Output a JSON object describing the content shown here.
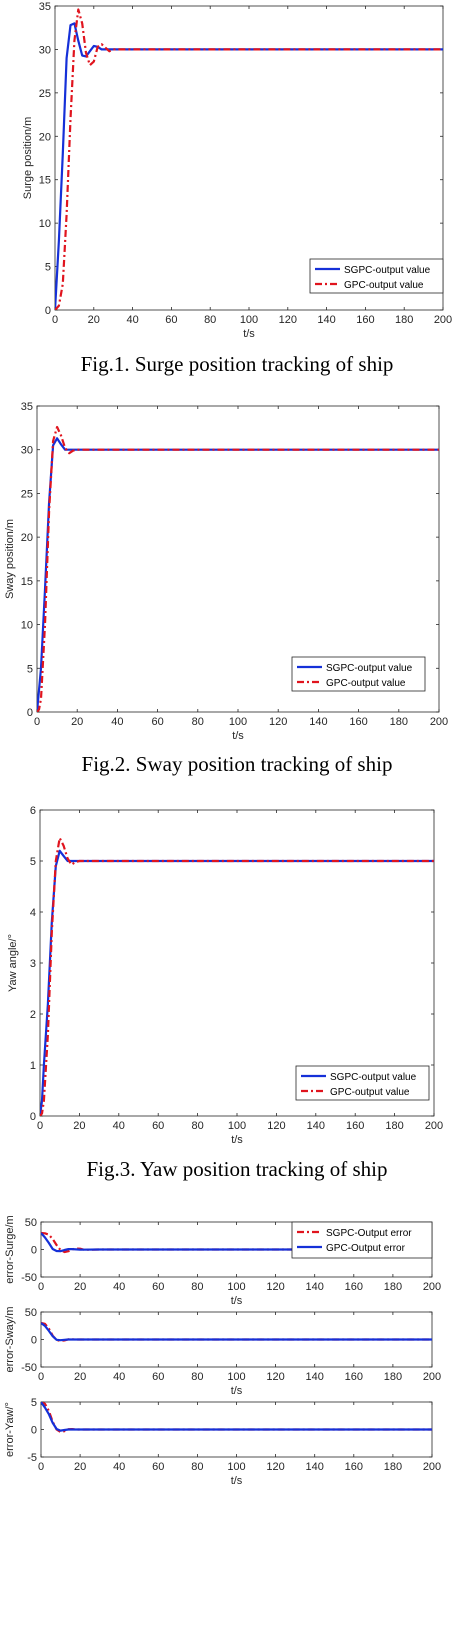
{
  "chart_data": [
    {
      "type": "line",
      "xlabel": "t/s",
      "ylabel": "Surge position/m",
      "xlim": [
        0,
        200
      ],
      "ylim": [
        0,
        35
      ],
      "xticks": [
        0,
        20,
        40,
        60,
        80,
        100,
        120,
        140,
        160,
        180,
        200
      ],
      "yticks": [
        0,
        5,
        10,
        15,
        20,
        25,
        30,
        35
      ],
      "grid": false,
      "legend_position": "bottom-right",
      "series": [
        {
          "name": "SGPC-output value",
          "color": "#1530d8",
          "style": "solid",
          "x": [
            0,
            2,
            4,
            6,
            8,
            10,
            12,
            14,
            16,
            18,
            20,
            22,
            24,
            26,
            30,
            40,
            200
          ],
          "y": [
            0,
            8,
            18,
            29,
            32.8,
            33,
            31,
            29.3,
            29.2,
            29.8,
            30.4,
            30.3,
            30,
            30,
            30,
            30,
            30
          ]
        },
        {
          "name": "GPC-output value",
          "color": "#e0141e",
          "style": "dashdot",
          "x": [
            0,
            2,
            4,
            6,
            8,
            10,
            12,
            14,
            16,
            18,
            20,
            22,
            24,
            26,
            28,
            30,
            40,
            200
          ],
          "y": [
            0,
            0.5,
            3,
            11,
            22,
            31,
            34.6,
            33,
            29.6,
            28.2,
            28.6,
            30.3,
            30.6,
            30.2,
            29.8,
            30,
            30,
            30
          ]
        }
      ],
      "caption": "Fig.1. Surge position tracking of ship"
    },
    {
      "type": "line",
      "xlabel": "t/s",
      "ylabel": "Sway position/m",
      "xlim": [
        0,
        200
      ],
      "ylim": [
        0,
        35
      ],
      "xticks": [
        0,
        20,
        40,
        60,
        80,
        100,
        120,
        140,
        160,
        180,
        200
      ],
      "yticks": [
        0,
        5,
        10,
        15,
        20,
        25,
        30,
        35
      ],
      "grid": false,
      "legend_position": "bottom-right",
      "series": [
        {
          "name": "SGPC-output value",
          "color": "#1530d8",
          "style": "solid",
          "x": [
            0,
            2,
            4,
            6,
            8,
            10,
            12,
            14,
            16,
            20,
            200
          ],
          "y": [
            0,
            5,
            14,
            24,
            30.5,
            31.3,
            30.6,
            30,
            30,
            30,
            30
          ]
        },
        {
          "name": "GPC-output value",
          "color": "#e0141e",
          "style": "dashdot",
          "x": [
            0,
            1,
            2,
            4,
            6,
            8,
            10,
            12,
            14,
            16,
            18,
            20,
            200
          ],
          "y": [
            0,
            0.3,
            1.5,
            10,
            23,
            31,
            32.6,
            31.6,
            30.2,
            29.6,
            29.9,
            30,
            30
          ]
        }
      ],
      "caption": "Fig.2. Sway position tracking of ship"
    },
    {
      "type": "line",
      "xlabel": "t/s",
      "ylabel": "Yaw angle/°",
      "xlim": [
        0,
        200
      ],
      "ylim": [
        0,
        6
      ],
      "xticks": [
        0,
        20,
        40,
        60,
        80,
        100,
        120,
        140,
        160,
        180,
        200
      ],
      "yticks": [
        0,
        1,
        2,
        3,
        4,
        5,
        6
      ],
      "grid": false,
      "legend_position": "bottom-right",
      "series": [
        {
          "name": "SGPC-output value",
          "color": "#1530d8",
          "style": "solid",
          "x": [
            0,
            1,
            2,
            4,
            6,
            8,
            10,
            12,
            14,
            16,
            20,
            200
          ],
          "y": [
            0,
            0.3,
            1.0,
            2.2,
            3.8,
            4.9,
            5.2,
            5.1,
            5.0,
            5.0,
            5.0,
            5.0
          ]
        },
        {
          "name": "GPC-output value",
          "color": "#e0141e",
          "style": "dashdot",
          "x": [
            0,
            1,
            2,
            4,
            6,
            8,
            10,
            12,
            14,
            16,
            18,
            20,
            200
          ],
          "y": [
            0,
            0.05,
            0.3,
            1.6,
            3.6,
            5.0,
            5.45,
            5.3,
            5.05,
            4.93,
            4.98,
            5.0,
            5.0
          ]
        }
      ],
      "caption": "Fig.3. Yaw position tracking of ship"
    },
    {
      "type": "line",
      "xlabel": "t/s",
      "ylabel": "error-Surge/m",
      "xlim": [
        0,
        200
      ],
      "ylim": [
        -50,
        50
      ],
      "xticks": [
        0,
        20,
        40,
        60,
        80,
        100,
        120,
        140,
        160,
        180,
        200
      ],
      "yticks": [
        -50,
        0,
        50
      ],
      "grid": false,
      "legend_position": "top-right",
      "series": [
        {
          "name": "SGPC-Output error",
          "color": "#e0141e",
          "style": "dashdot",
          "x": [
            0,
            2,
            4,
            6,
            8,
            10,
            12,
            14,
            16,
            18,
            20,
            22,
            30,
            200
          ],
          "y": [
            30,
            29.5,
            27,
            19,
            8,
            -1,
            -4.6,
            -3,
            0.4,
            1.8,
            1.4,
            -0.3,
            0,
            0
          ]
        },
        {
          "name": "GPC-Output error",
          "color": "#1530d8",
          "style": "solid",
          "x": [
            0,
            2,
            4,
            6,
            8,
            10,
            12,
            14,
            16,
            18,
            20,
            30,
            200
          ],
          "y": [
            30,
            22,
            12,
            1,
            -2.8,
            -3,
            -1,
            0.7,
            0.8,
            0.2,
            -0.3,
            0,
            0
          ]
        }
      ]
    },
    {
      "type": "line",
      "xlabel": "t/s",
      "ylabel": "error-Sway/m",
      "xlim": [
        0,
        200
      ],
      "ylim": [
        -50,
        50
      ],
      "xticks": [
        0,
        20,
        40,
        60,
        80,
        100,
        120,
        140,
        160,
        180,
        200
      ],
      "yticks": [
        -50,
        0,
        50
      ],
      "grid": false,
      "series": [
        {
          "color": "#e0141e",
          "style": "dashdot",
          "x": [
            0,
            2,
            4,
            6,
            8,
            10,
            12,
            14,
            16,
            18,
            20,
            200
          ],
          "y": [
            30,
            28.5,
            20,
            7,
            -1,
            -2.6,
            -1.6,
            0.4,
            0.2,
            0,
            0,
            0
          ]
        },
        {
          "color": "#1530d8",
          "style": "solid",
          "x": [
            0,
            2,
            4,
            6,
            8,
            10,
            12,
            14,
            16,
            20,
            200
          ],
          "y": [
            30,
            25,
            16,
            6,
            -0.5,
            -1.3,
            -0.6,
            0,
            0,
            0,
            0
          ]
        }
      ]
    },
    {
      "type": "line",
      "xlabel": "t/s",
      "ylabel": "error-Yaw/°",
      "xlim": [
        0,
        200
      ],
      "ylim": [
        -5,
        5
      ],
      "xticks": [
        0,
        20,
        40,
        60,
        80,
        100,
        120,
        140,
        160,
        180,
        200
      ],
      "yticks": [
        -5,
        0,
        5
      ],
      "grid": false,
      "series": [
        {
          "color": "#e0141e",
          "style": "dashdot",
          "x": [
            0,
            2,
            4,
            6,
            8,
            10,
            12,
            14,
            16,
            18,
            20,
            200
          ],
          "y": [
            5,
            4.7,
            3.4,
            1.4,
            0,
            -0.45,
            -0.3,
            0.05,
            0.07,
            0,
            0,
            0
          ]
        },
        {
          "color": "#1530d8",
          "style": "solid",
          "x": [
            0,
            2,
            4,
            6,
            8,
            10,
            12,
            14,
            16,
            20,
            200
          ],
          "y": [
            5,
            4,
            2.8,
            1.2,
            0.1,
            -0.2,
            -0.1,
            0,
            0,
            0,
            0
          ]
        }
      ]
    }
  ]
}
